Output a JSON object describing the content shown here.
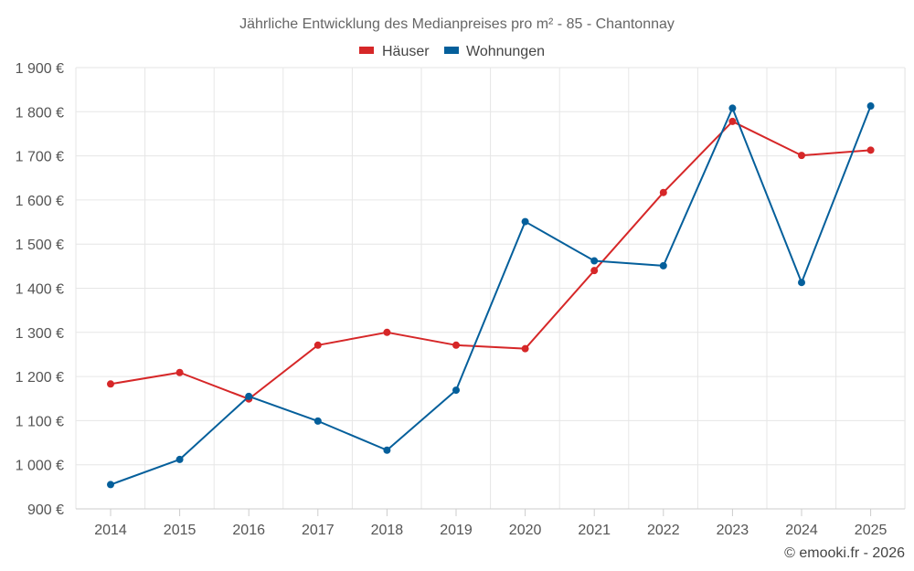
{
  "chart_data": {
    "type": "line",
    "title": "Jährliche Entwicklung des Medianpreises pro m² - 85 - Chantonnay",
    "categories": [
      "2014",
      "2015",
      "2016",
      "2017",
      "2018",
      "2019",
      "2020",
      "2021",
      "2022",
      "2023",
      "2024",
      "2025"
    ],
    "series": [
      {
        "name": "Häuser",
        "color": "#d62728",
        "values": [
          1183,
          1209,
          1149,
          1271,
          1300,
          1271,
          1263,
          1440,
          1617,
          1778,
          1701,
          1713
        ]
      },
      {
        "name": "Wohnungen",
        "color": "#045f9b",
        "values": [
          955,
          1012,
          1155,
          1099,
          1033,
          1169,
          1551,
          1462,
          1451,
          1808,
          1413,
          1813
        ]
      }
    ],
    "ylim": [
      900,
      1900
    ],
    "yticks": [
      900,
      1000,
      1100,
      1200,
      1300,
      1400,
      1500,
      1600,
      1700,
      1800,
      1900
    ],
    "ytick_labels": [
      "900 €",
      "1 000 €",
      "1 100 €",
      "1 200 €",
      "1 300 €",
      "1 400 €",
      "1 500 €",
      "1 600 €",
      "1 700 €",
      "1 800 €",
      "1 900 €"
    ],
    "grid": true,
    "legend_position": "top-center",
    "credit": "© emooki.fr - 2026"
  }
}
